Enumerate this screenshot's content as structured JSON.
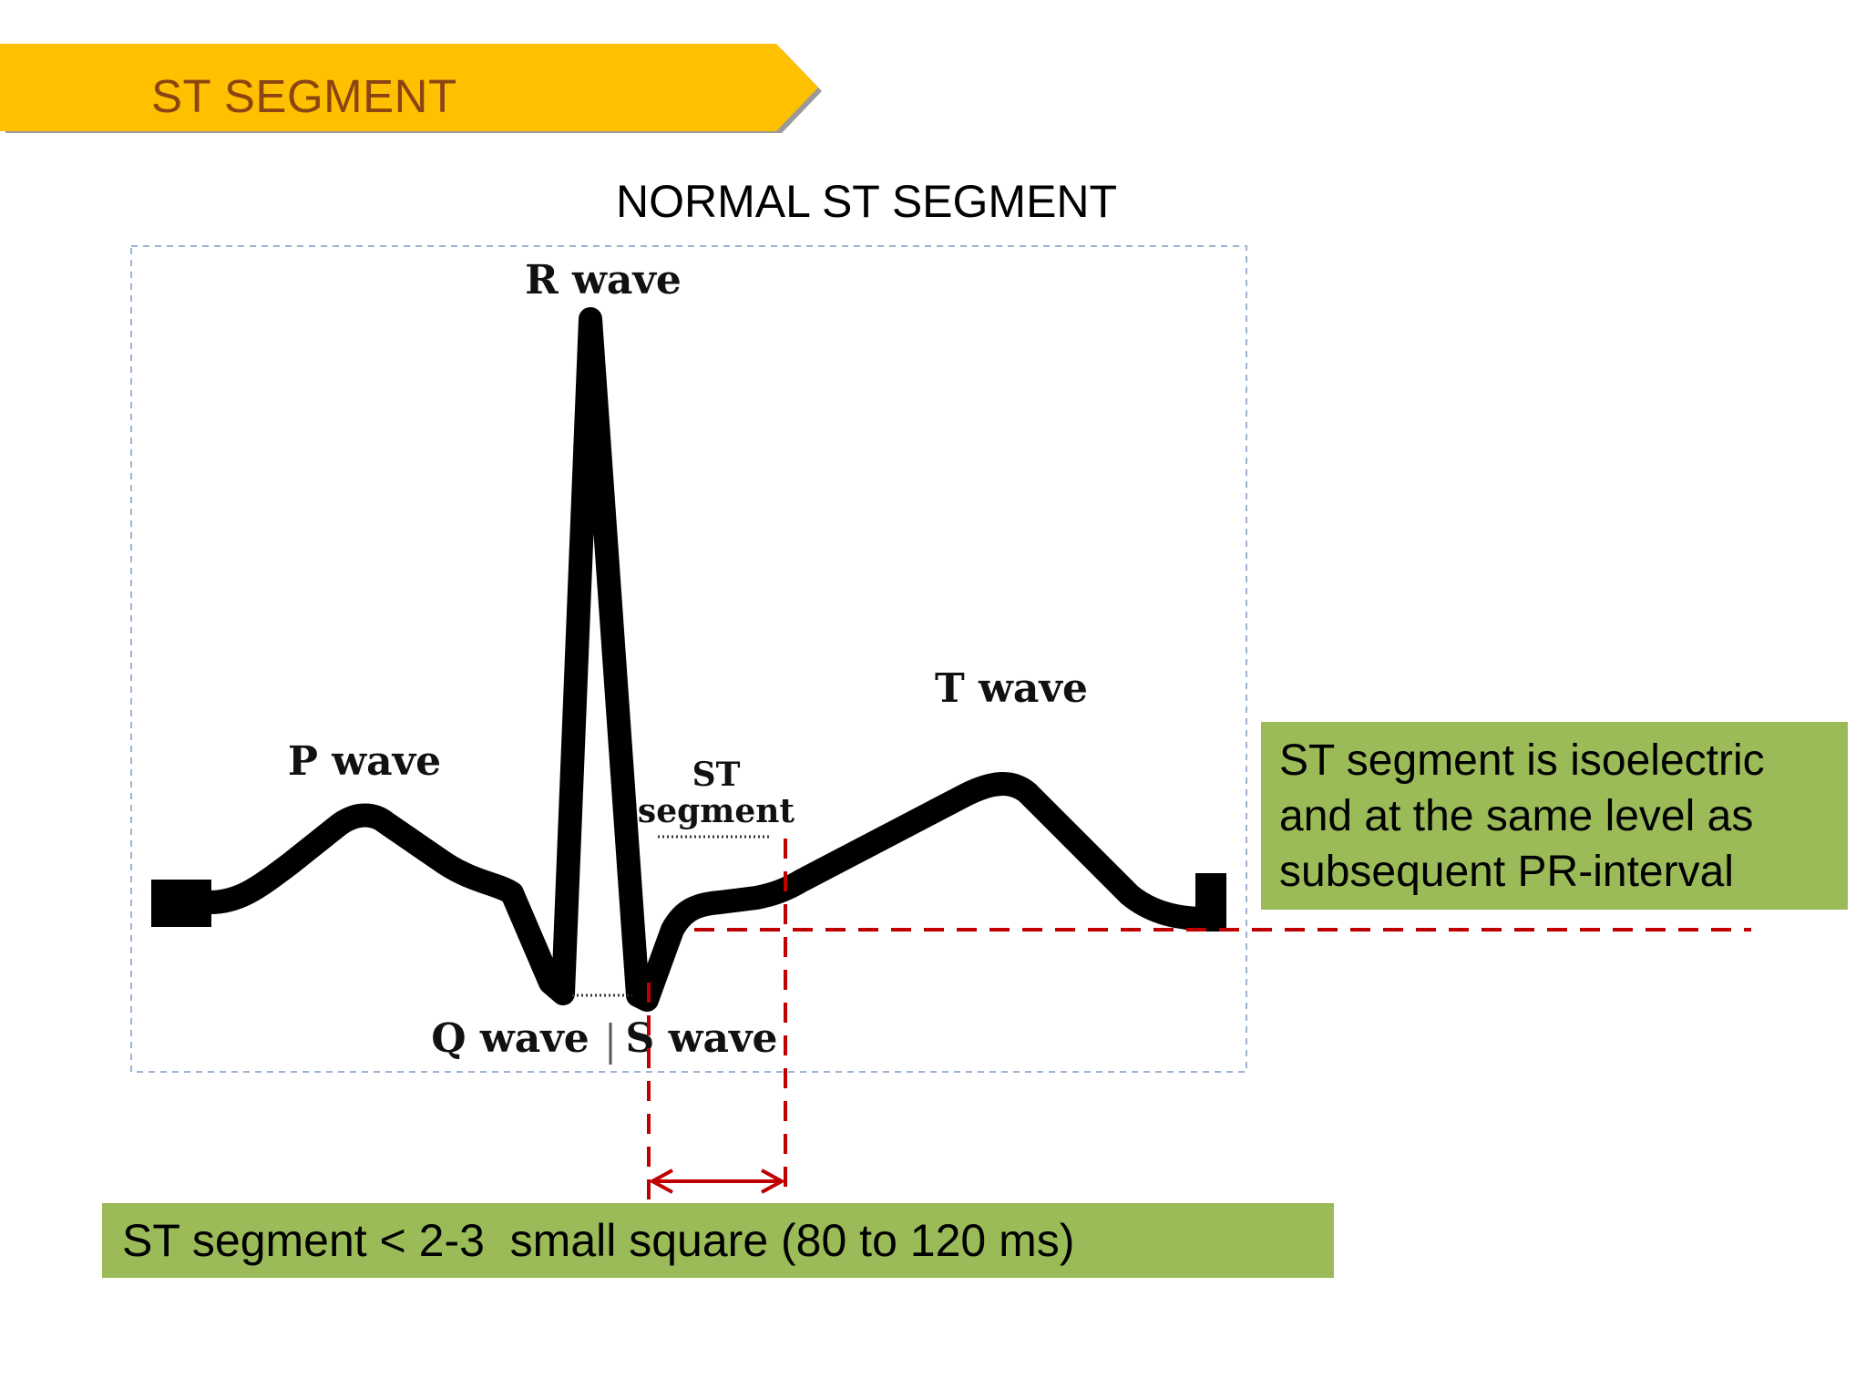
{
  "banner": {
    "title": "ST SEGMENT",
    "color": "#FFC000",
    "text_color": "#8B4513"
  },
  "slide_title": "NORMAL ST SEGMENT",
  "ecg_labels": {
    "r_wave": "R wave",
    "p_wave": "P wave",
    "t_wave": "T wave",
    "st_segment_line1": "ST",
    "st_segment_line2": "segment",
    "q_wave": "Q wave",
    "s_wave": "S wave"
  },
  "callouts": {
    "right_lines": [
      "ST segment is isoelectric",
      "and at the same level as",
      "subsequent PR-interval"
    ],
    "bottom": "ST segment < 2-3  small square (80 to 120 ms)",
    "box_color": "#9BBB59",
    "marker_color": "#C00000"
  }
}
